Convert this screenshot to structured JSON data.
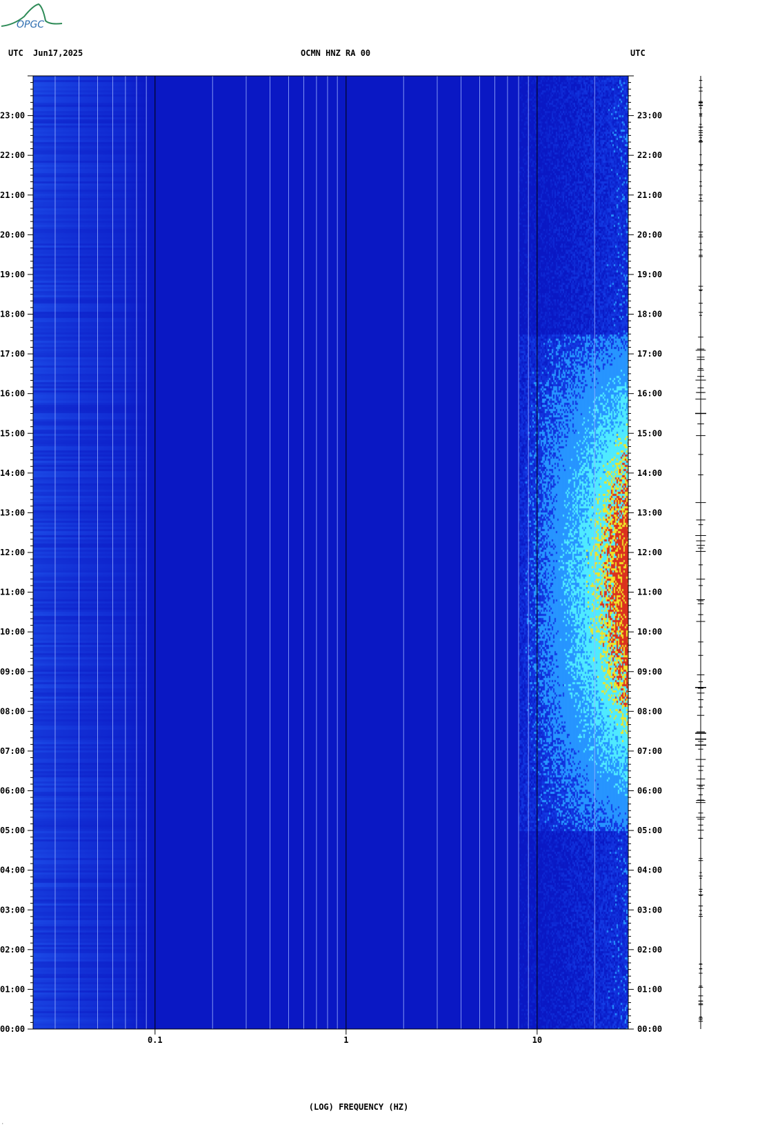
{
  "header": {
    "left_label": "UTC",
    "date": "Jun17,2025",
    "station": "OCMN HNZ RA 00",
    "right_label": "UTC"
  },
  "logo": {
    "text": "OPGC",
    "color": "#2e8b57"
  },
  "colors": {
    "background_low": "#0a14c8",
    "mid": "#1e6cff",
    "high": "#5ff0ff",
    "peak": "#ffe000",
    "max": "#e0301e"
  },
  "chart_data": {
    "type": "heatmap",
    "title": "OCMN HNZ RA 00",
    "xlabel": "(LOG) FREQUENCY (HZ)",
    "x_scale": "log",
    "x_range": [
      0.023,
      30
    ],
    "x_ticks": [
      {
        "value": 0.1,
        "label": "0.1"
      },
      {
        "value": 1,
        "label": "1"
      },
      {
        "value": 10,
        "label": "10"
      }
    ],
    "y_range_hours": [
      0,
      24
    ],
    "y_ticks": [
      "00:00",
      "01:00",
      "02:00",
      "03:00",
      "04:00",
      "05:00",
      "06:00",
      "07:00",
      "08:00",
      "09:00",
      "10:00",
      "11:00",
      "12:00",
      "13:00",
      "14:00",
      "15:00",
      "16:00",
      "17:00",
      "18:00",
      "19:00",
      "20:00",
      "21:00",
      "22:00",
      "23:00"
    ],
    "high_energy_band": {
      "freq_min_hz": 10,
      "freq_max_hz": 30,
      "time_start_hour": 5,
      "time_end_hour": 17.5
    },
    "grid": "vertical log-decade lines"
  }
}
